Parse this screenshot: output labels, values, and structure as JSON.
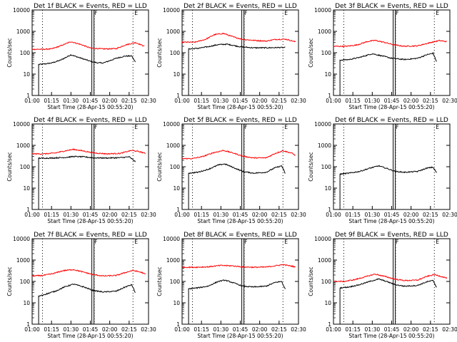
{
  "chart_data": [
    {
      "type": "line",
      "title": "Det 1f BLACK = Events, RED = LLD",
      "xlabel": "Start Time (28-Apr-15 00:55:20)",
      "ylabel": "Counts/sec",
      "yscale": "log",
      "ylim": [
        1,
        10000
      ],
      "xlim": [
        "01:00",
        "02:30"
      ],
      "x_ticks": [
        "01:00",
        "01:15",
        "01:30",
        "01:45",
        "02:00",
        "02:15",
        "02:30"
      ],
      "y_ticks": [
        "1",
        "10",
        "100",
        "1000",
        "10000"
      ],
      "grid": "vertical dotted lines at 01:08, 01:48, 02:18",
      "markers": [
        "01:47",
        "02:18"
      ],
      "marker_labels": [
        "F",
        "E"
      ],
      "series": [
        {
          "name": "Events",
          "color": "#000000",
          "x": [
            "01:05",
            "01:10",
            "01:15",
            "01:22",
            "01:30",
            "01:38",
            "01:45",
            "01:50",
            "01:55",
            "02:05",
            "02:12",
            "02:17",
            "02:20"
          ],
          "y": [
            28,
            30,
            33,
            45,
            80,
            55,
            40,
            34,
            33,
            55,
            70,
            70,
            35
          ]
        },
        {
          "name": "LLD",
          "color": "#ff0000",
          "x": [
            "01:00",
            "01:08",
            "01:15",
            "01:22",
            "01:30",
            "01:38",
            "01:45",
            "01:55",
            "02:05",
            "02:12",
            "02:20",
            "02:27"
          ],
          "y": [
            145,
            145,
            150,
            210,
            330,
            240,
            165,
            150,
            155,
            230,
            300,
            200
          ]
        }
      ]
    },
    {
      "type": "line",
      "title": "Det 2f BLACK = Events, RED = LLD",
      "xlabel": "Start Time (28-Apr-15 00:55:20)",
      "ylabel": "Counts/sec",
      "yscale": "log",
      "ylim": [
        1,
        10000
      ],
      "xlim": [
        "01:00",
        "02:30"
      ],
      "x_ticks": [
        "01:00",
        "01:15",
        "01:30",
        "01:45",
        "02:00",
        "02:15",
        "02:30"
      ],
      "y_ticks": [
        "1",
        "10",
        "100",
        "1000",
        "10000"
      ],
      "grid": "vertical dotted lines at 01:08, 01:48, 02:18",
      "markers": [
        "01:47",
        "02:18"
      ],
      "marker_labels": [
        "F",
        "E"
      ],
      "series": [
        {
          "name": "Events",
          "color": "#000000",
          "x": [
            "01:05",
            "01:12",
            "01:20",
            "01:28",
            "01:35",
            "01:45",
            "01:55",
            "02:05",
            "02:15",
            "02:20"
          ],
          "y": [
            150,
            160,
            190,
            240,
            250,
            190,
            170,
            170,
            175,
            175
          ]
        },
        {
          "name": "LLD",
          "color": "#ff0000",
          "x": [
            "01:00",
            "01:10",
            "01:18",
            "01:25",
            "01:32",
            "01:40",
            "01:47",
            "01:55",
            "02:05",
            "02:12",
            "02:20",
            "02:28"
          ],
          "y": [
            310,
            310,
            420,
            700,
            800,
            540,
            420,
            380,
            350,
            420,
            430,
            320
          ]
        }
      ]
    },
    {
      "type": "line",
      "title": "Det 3f BLACK = Events, RED = LLD",
      "xlabel": "Start Time (28-Apr-15 00:55:20)",
      "ylabel": "Counts/sec",
      "yscale": "log",
      "ylim": [
        1,
        10000
      ],
      "xlim": [
        "01:00",
        "02:30"
      ],
      "x_ticks": [
        "01:00",
        "01:15",
        "01:30",
        "01:45",
        "02:00",
        "02:15",
        "02:30"
      ],
      "y_ticks": [
        "1",
        "10",
        "100",
        "1000",
        "10000"
      ],
      "grid": "vertical dotted lines at 01:08, 01:48, 02:18",
      "markers": [
        "01:47",
        "02:18"
      ],
      "marker_labels": [
        "F",
        "E"
      ],
      "series": [
        {
          "name": "Events",
          "color": "#000000",
          "x": [
            "01:05",
            "01:12",
            "01:20",
            "01:30",
            "01:38",
            "01:45",
            "01:55",
            "02:05",
            "02:12",
            "02:17",
            "02:20"
          ],
          "y": [
            45,
            48,
            60,
            90,
            70,
            55,
            48,
            55,
            80,
            95,
            35
          ]
        },
        {
          "name": "LLD",
          "color": "#ff0000",
          "x": [
            "01:00",
            "01:10",
            "01:18",
            "01:26",
            "01:32",
            "01:40",
            "01:47",
            "01:55",
            "02:05",
            "02:15",
            "02:22",
            "02:28"
          ],
          "y": [
            200,
            200,
            230,
            330,
            380,
            300,
            230,
            200,
            210,
            300,
            370,
            330
          ]
        }
      ]
    },
    {
      "type": "line",
      "title": "Det 4f BLACK = Events, RED = LLD",
      "xlabel": "Start Time (28-Apr-15 00:55:20)",
      "ylabel": "Counts/sec",
      "yscale": "log",
      "ylim": [
        1,
        10000
      ],
      "xlim": [
        "01:00",
        "02:30"
      ],
      "x_ticks": [
        "01:00",
        "01:15",
        "01:30",
        "01:45",
        "02:00",
        "02:15",
        "02:30"
      ],
      "y_ticks": [
        "1",
        "10",
        "100",
        "1000",
        "10000"
      ],
      "grid": "vertical dotted lines at 01:08, 01:48, 02:18",
      "markers": [
        "01:47",
        "02:18"
      ],
      "marker_labels": [
        "F",
        "E"
      ],
      "series": [
        {
          "name": "Events",
          "color": "#000000",
          "x": [
            "01:05",
            "01:15",
            "01:25",
            "01:32",
            "01:40",
            "01:48",
            "01:58",
            "02:08",
            "02:15",
            "02:20"
          ],
          "y": [
            250,
            255,
            270,
            300,
            290,
            260,
            255,
            265,
            290,
            170
          ]
        },
        {
          "name": "LLD",
          "color": "#ff0000",
          "x": [
            "01:00",
            "01:10",
            "01:18",
            "01:26",
            "01:32",
            "01:40",
            "01:48",
            "01:58",
            "02:08",
            "02:17",
            "02:24",
            "02:28"
          ],
          "y": [
            400,
            400,
            440,
            560,
            650,
            540,
            440,
            400,
            420,
            580,
            490,
            410
          ]
        }
      ]
    },
    {
      "type": "line",
      "title": "Det 5f BLACK = Events, RED = LLD",
      "xlabel": "Start Time (28-Apr-15 00:55:20)",
      "ylabel": "Counts/sec",
      "yscale": "log",
      "ylim": [
        1,
        10000
      ],
      "xlim": [
        "01:00",
        "02:30"
      ],
      "x_ticks": [
        "01:00",
        "01:15",
        "01:30",
        "01:45",
        "02:00",
        "02:15",
        "02:30"
      ],
      "y_ticks": [
        "1",
        "10",
        "100",
        "1000",
        "10000"
      ],
      "grid": "vertical dotted lines at 01:08, 01:48, 02:18",
      "markers": [
        "01:47",
        "02:18"
      ],
      "marker_labels": [
        "F",
        "E"
      ],
      "series": [
        {
          "name": "Events",
          "color": "#000000",
          "x": [
            "01:05",
            "01:12",
            "01:20",
            "01:28",
            "01:33",
            "01:40",
            "01:47",
            "01:55",
            "02:05",
            "02:12",
            "02:17",
            "02:20"
          ],
          "y": [
            50,
            55,
            75,
            120,
            135,
            90,
            60,
            50,
            55,
            90,
            110,
            45
          ]
        },
        {
          "name": "LLD",
          "color": "#ff0000",
          "x": [
            "01:00",
            "01:08",
            "01:16",
            "01:24",
            "01:32",
            "01:40",
            "01:47",
            "01:55",
            "02:05",
            "02:12",
            "02:18",
            "02:25",
            "02:28"
          ],
          "y": [
            240,
            240,
            300,
            450,
            580,
            430,
            310,
            260,
            260,
            420,
            560,
            430,
            330
          ]
        }
      ]
    },
    {
      "type": "line",
      "title": "Det 6f BLACK = Events, RED = LLD",
      "xlabel": "Start Time (28-Apr-15 00:55:20)",
      "ylabel": "Counts/sec",
      "yscale": "log",
      "ylim": [
        1,
        10000
      ],
      "xlim": [
        "01:00",
        "02:30"
      ],
      "x_ticks": [
        "01:00",
        "01:15",
        "01:30",
        "01:45",
        "02:00",
        "02:15",
        "02:30"
      ],
      "y_ticks": [
        "1",
        "10",
        "100",
        "1000",
        "10000"
      ],
      "grid": "vertical dotted lines at 01:08, 01:48, 02:18",
      "markers": [
        "01:47",
        "02:18"
      ],
      "marker_labels": [
        "F",
        "E"
      ],
      "series": [
        {
          "name": "Events",
          "color": "#000000",
          "x": [
            "01:05",
            "01:12",
            "01:20",
            "01:28",
            "01:35",
            "01:42",
            "01:48",
            "01:55",
            "02:05",
            "02:12",
            "02:17",
            "02:20"
          ],
          "y": [
            45,
            50,
            60,
            85,
            110,
            80,
            60,
            55,
            60,
            85,
            95,
            50
          ]
        }
      ]
    },
    {
      "type": "line",
      "title": "Det 7f BLACK = Events, RED = LLD",
      "xlabel": "Start Time (28-Apr-15 00:55:20)",
      "ylabel": "Counts/sec",
      "yscale": "log",
      "ylim": [
        1,
        10000
      ],
      "xlim": [
        "01:00",
        "02:30"
      ],
      "x_ticks": [
        "01:00",
        "01:15",
        "01:30",
        "01:45",
        "02:00",
        "02:15",
        "02:30"
      ],
      "y_ticks": [
        "1",
        "10",
        "100",
        "1000",
        "10000"
      ],
      "grid": "vertical dotted lines at 01:08, 01:48, 02:18",
      "markers": [
        "01:47",
        "02:18"
      ],
      "marker_labels": [
        "F",
        "E"
      ],
      "series": [
        {
          "name": "Events",
          "color": "#000000",
          "x": [
            "01:05",
            "01:10",
            "01:18",
            "01:25",
            "01:32",
            "01:40",
            "01:47",
            "01:55",
            "02:05",
            "02:12",
            "02:17",
            "02:20"
          ],
          "y": [
            20,
            25,
            35,
            55,
            75,
            55,
            38,
            32,
            35,
            55,
            70,
            28
          ]
        },
        {
          "name": "LLD",
          "color": "#ff0000",
          "x": [
            "01:00",
            "01:08",
            "01:16",
            "01:24",
            "01:32",
            "01:40",
            "01:47",
            "01:55",
            "02:05",
            "02:12",
            "02:18",
            "02:25",
            "02:28"
          ],
          "y": [
            180,
            190,
            230,
            320,
            360,
            270,
            210,
            180,
            190,
            260,
            330,
            260,
            210
          ]
        }
      ]
    },
    {
      "type": "line",
      "title": "Det 8f BLACK = Events, RED = LLD",
      "xlabel": "Start Time (28-Apr-15 00:55:20)",
      "ylabel": "Counts/sec",
      "yscale": "log",
      "ylim": [
        1,
        10000
      ],
      "xlim": [
        "01:00",
        "02:30"
      ],
      "x_ticks": [
        "01:00",
        "01:15",
        "01:30",
        "01:45",
        "02:00",
        "02:15",
        "02:30"
      ],
      "y_ticks": [
        "1",
        "10",
        "100",
        "1000",
        "10000"
      ],
      "grid": "vertical dotted lines at 01:08, 01:48, 02:18",
      "markers": [
        "01:47",
        "02:18"
      ],
      "marker_labels": [
        "F",
        "E"
      ],
      "series": [
        {
          "name": "Events",
          "color": "#000000",
          "x": [
            "01:05",
            "01:12",
            "01:20",
            "01:28",
            "01:33",
            "01:40",
            "01:47",
            "01:55",
            "02:05",
            "02:12",
            "02:17",
            "02:20"
          ],
          "y": [
            45,
            50,
            60,
            100,
            115,
            85,
            60,
            55,
            60,
            90,
            100,
            40
          ]
        },
        {
          "name": "LLD",
          "color": "#ff0000",
          "x": [
            "01:00",
            "01:10",
            "01:20",
            "01:30",
            "01:38",
            "01:47",
            "01:55",
            "02:05",
            "02:12",
            "02:18",
            "02:25",
            "02:28"
          ],
          "y": [
            460,
            460,
            480,
            560,
            540,
            480,
            460,
            470,
            540,
            610,
            520,
            460
          ]
        }
      ]
    },
    {
      "type": "line",
      "title": "Det 9f BLACK = Events, RED = LLD",
      "xlabel": "Start Time (28-Apr-15 00:55:20)",
      "ylabel": "Counts/sec",
      "yscale": "log",
      "ylim": [
        1,
        10000
      ],
      "xlim": [
        "01:00",
        "02:30"
      ],
      "x_ticks": [
        "01:00",
        "01:15",
        "01:30",
        "01:45",
        "02:00",
        "02:15",
        "02:30"
      ],
      "y_ticks": [
        "1",
        "10",
        "100",
        "1000",
        "10000"
      ],
      "grid": "vertical dotted lines at 01:08, 01:48, 02:18",
      "markers": [
        "01:47",
        "02:18"
      ],
      "marker_labels": [
        "F",
        "E"
      ],
      "series": [
        {
          "name": "Events",
          "color": "#000000",
          "x": [
            "01:05",
            "01:12",
            "01:20",
            "01:28",
            "01:35",
            "01:42",
            "01:48",
            "01:55",
            "02:05",
            "02:12",
            "02:17",
            "02:20"
          ],
          "y": [
            50,
            55,
            70,
            100,
            130,
            95,
            70,
            60,
            65,
            95,
            110,
            50
          ]
        },
        {
          "name": "LLD",
          "color": "#ff0000",
          "x": [
            "01:00",
            "01:08",
            "01:16",
            "01:24",
            "01:32",
            "01:40",
            "01:47",
            "01:55",
            "02:05",
            "02:12",
            "02:18",
            "02:25",
            "02:28"
          ],
          "y": [
            100,
            100,
            120,
            160,
            220,
            170,
            130,
            110,
            115,
            170,
            210,
            160,
            140
          ]
        }
      ]
    }
  ]
}
